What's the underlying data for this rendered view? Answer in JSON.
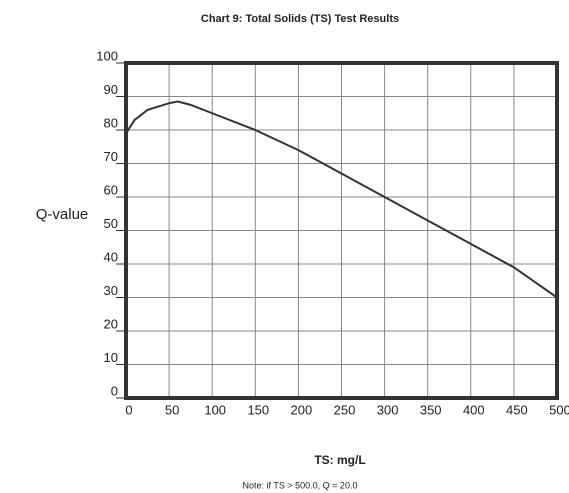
{
  "chart_data": {
    "type": "line",
    "title": "Chart 9: Total Solids (TS) Test Results",
    "y_label": "Q-value",
    "x_label": "TS: mg/L",
    "note": "Note: if TS > 500.0, Q = 20.0",
    "x": [
      0,
      10,
      25,
      50,
      60,
      75,
      100,
      150,
      200,
      250,
      300,
      350,
      400,
      450,
      500
    ],
    "values": [
      79,
      83,
      86,
      88,
      88.5,
      87.5,
      85,
      80,
      74,
      67,
      60,
      53,
      46,
      39,
      30
    ],
    "color": "#333333",
    "xlim": [
      0,
      500
    ],
    "xticks": [
      0,
      50,
      100,
      150,
      200,
      250,
      300,
      350,
      400,
      450,
      500
    ],
    "ylim": [
      0,
      100
    ],
    "yticks": [
      0,
      10,
      20,
      30,
      40,
      50,
      60,
      70,
      80,
      90,
      100
    ],
    "grid": true
  }
}
